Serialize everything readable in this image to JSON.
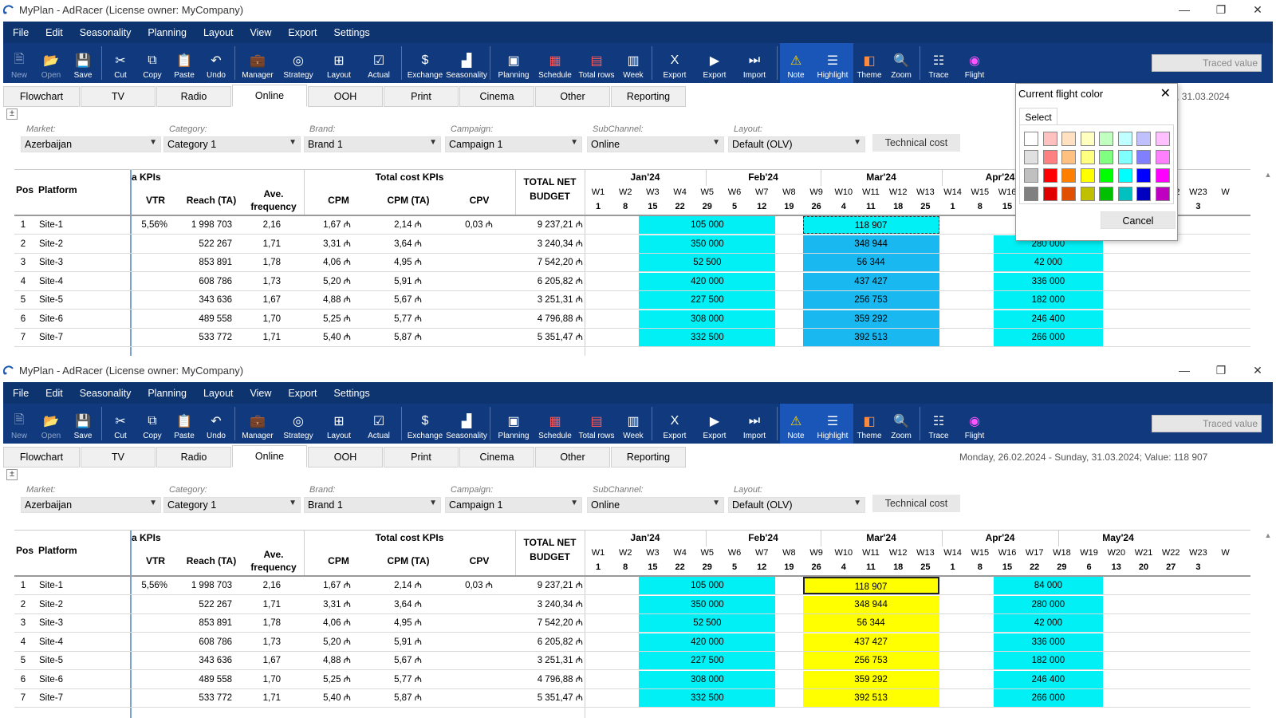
{
  "app": {
    "title": "MyPlan - AdRacer (License owner: MyCompany)",
    "win_min": "—",
    "win_max": "❐",
    "win_close": "✕"
  },
  "menu": [
    "File",
    "Edit",
    "Seasonality",
    "Planning",
    "Layout",
    "View",
    "Export",
    "Settings"
  ],
  "toolbar": [
    {
      "label": "New",
      "icon": "new-icon",
      "disabled": true
    },
    {
      "label": "Open",
      "icon": "open-icon",
      "disabled": true
    },
    {
      "label": "Save",
      "icon": "save-icon"
    },
    {
      "sep": true
    },
    {
      "label": "Cut",
      "icon": "cut-icon"
    },
    {
      "label": "Copy",
      "icon": "copy-icon"
    },
    {
      "label": "Paste",
      "icon": "paste-icon"
    },
    {
      "label": "Undo",
      "icon": "undo-icon"
    },
    {
      "sep": true
    },
    {
      "label": "Manager",
      "icon": "manager-icon"
    },
    {
      "label": "Strategy",
      "icon": "strategy-icon"
    },
    {
      "label": "Layout",
      "icon": "layout-icon"
    },
    {
      "label": "Actual",
      "icon": "actual-icon"
    },
    {
      "sep": true
    },
    {
      "label": "Exchange",
      "icon": "exchange-icon"
    },
    {
      "label": "Seasonality",
      "icon": "seasonality-icon"
    },
    {
      "sep": true
    },
    {
      "label": "Planning",
      "icon": "planning-icon"
    },
    {
      "label": "Schedule",
      "icon": "schedule-icon"
    },
    {
      "label": "Total rows",
      "icon": "total-rows-icon"
    },
    {
      "label": "Week",
      "icon": "week-icon"
    },
    {
      "sep": true
    },
    {
      "label": "Export",
      "icon": "export-excel-icon"
    },
    {
      "label": "Export",
      "icon": "export-icon"
    },
    {
      "label": "Import",
      "icon": "import-icon"
    },
    {
      "sep": true
    },
    {
      "label": "Note",
      "icon": "note-icon",
      "selected": true
    },
    {
      "label": "Highlight",
      "icon": "highlight-icon",
      "selected": true
    },
    {
      "label": "Theme",
      "icon": "theme-icon"
    },
    {
      "label": "Zoom",
      "icon": "zoom-icon"
    },
    {
      "sep": true
    },
    {
      "label": "Trace",
      "icon": "trace-icon"
    },
    {
      "label": "Flight",
      "icon": "flight-icon"
    }
  ],
  "traced_value": "Traced value",
  "tabs": [
    "Flowchart",
    "TV",
    "Radio",
    "Online",
    "OOH",
    "Print",
    "Cinema",
    "Other",
    "Reporting"
  ],
  "active_tab": "Online",
  "status_top": "nday, 31.03.2024",
  "status_bottom": "Monday, 26.02.2024 - Sunday, 31.03.2024;     Value: 118 907",
  "filters": [
    {
      "label": "Market:",
      "value": "Azerbaijan"
    },
    {
      "label": "Category:",
      "value": "Category 1"
    },
    {
      "label": "Brand:",
      "value": "Brand 1"
    },
    {
      "label": "Campaign:",
      "value": "Campaign 1"
    },
    {
      "label": "SubChannel:",
      "value": "Online"
    },
    {
      "label": "Layout:",
      "value": "Default (OLV)"
    }
  ],
  "technical_cost": "Technical cost",
  "table": {
    "pos_header": "Pos",
    "platform_header": "Platform",
    "kpi_group": "a KPIs",
    "cost_group": "Total cost KPIs",
    "budget_header_1": "TOTAL NET",
    "budget_header_2": "BUDGET",
    "cols": [
      "VTR",
      "Reach (TA)",
      "Ave. frequency",
      "CPM",
      "CPM (TA)",
      "CPV"
    ],
    "months": [
      "Jan'24",
      "Feb'24",
      "Mar'24",
      "Apr'24",
      "May'24"
    ],
    "weeks": [
      "W1",
      "W2",
      "W3",
      "W4",
      "W5",
      "W6",
      "W7",
      "W8",
      "W9",
      "W10",
      "W11",
      "W12",
      "W13",
      "W14",
      "W15",
      "W16",
      "W17",
      "W18",
      "W19",
      "W20",
      "W21",
      "W22",
      "W23",
      "W"
    ],
    "days": [
      "1",
      "8",
      "15",
      "22",
      "29",
      "5",
      "12",
      "19",
      "26",
      "4",
      "11",
      "18",
      "25",
      "1",
      "8",
      "15",
      "22",
      "29",
      "6",
      "13",
      "20",
      "27",
      "3",
      ""
    ],
    "rows": [
      {
        "pos": "1",
        "platform": "Site-1",
        "vtr": "5,56%",
        "reach": "1 998 703",
        "freq": "2,16",
        "cpm": "1,67 ₼",
        "cpmta": "2,14 ₼",
        "cpv": "0,03 ₼",
        "budget": "9 237,21 ₼",
        "jan": "105 000",
        "mar": "118 907",
        "apr": "84 000"
      },
      {
        "pos": "2",
        "platform": "Site-2",
        "vtr": "",
        "reach": "522 267",
        "freq": "1,71",
        "cpm": "3,31 ₼",
        "cpmta": "3,64 ₼",
        "cpv": "",
        "budget": "3 240,34 ₼",
        "jan": "350 000",
        "mar": "348 944",
        "apr": "280 000"
      },
      {
        "pos": "3",
        "platform": "Site-3",
        "vtr": "",
        "reach": "853 891",
        "freq": "1,78",
        "cpm": "4,06 ₼",
        "cpmta": "4,95 ₼",
        "cpv": "",
        "budget": "7 542,20 ₼",
        "jan": "52 500",
        "mar": "56 344",
        "apr": "42 000"
      },
      {
        "pos": "4",
        "platform": "Site-4",
        "vtr": "",
        "reach": "608 786",
        "freq": "1,73",
        "cpm": "5,20 ₼",
        "cpmta": "5,91 ₼",
        "cpv": "",
        "budget": "6 205,82 ₼",
        "jan": "420 000",
        "mar": "437 427",
        "apr": "336 000"
      },
      {
        "pos": "5",
        "platform": "Site-5",
        "vtr": "",
        "reach": "343 636",
        "freq": "1,67",
        "cpm": "4,88 ₼",
        "cpmta": "5,67 ₼",
        "cpv": "",
        "budget": "3 251,31 ₼",
        "jan": "227 500",
        "mar": "256 753",
        "apr": "182 000"
      },
      {
        "pos": "6",
        "platform": "Site-6",
        "vtr": "",
        "reach": "489 558",
        "freq": "1,70",
        "cpm": "5,25 ₼",
        "cpmta": "5,77 ₼",
        "cpv": "",
        "budget": "4 796,88 ₼",
        "jan": "308 000",
        "mar": "359 292",
        "apr": "246 400"
      },
      {
        "pos": "7",
        "platform": "Site-7",
        "vtr": "",
        "reach": "533 772",
        "freq": "1,71",
        "cpm": "5,40 ₼",
        "cpmta": "5,87 ₼",
        "cpv": "",
        "budget": "5 351,47 ₼",
        "jan": "332 500",
        "mar": "392 513",
        "apr": "266 000"
      }
    ]
  },
  "colors": {
    "flight_cyan": "#00f0f5",
    "flight_blue": "#1ab8f0",
    "flight_yellow": "#ffff00",
    "menubar": "#0e3470",
    "toolbar": "#103a7d"
  },
  "popup": {
    "title": "Current flight color",
    "close": "✕",
    "tab": "Select",
    "cancel": "Cancel",
    "swatches": [
      [
        "#ffffff",
        "#ffc0c0",
        "#ffe0c0",
        "#ffffc0",
        "#c0ffc0",
        "#c0ffff",
        "#c0c0ff",
        "#ffc0ff"
      ],
      [
        "#e0e0e0",
        "#ff8080",
        "#ffc080",
        "#ffff80",
        "#80ff80",
        "#80ffff",
        "#8080ff",
        "#ff80ff"
      ],
      [
        "#c0c0c0",
        "#ff0000",
        "#ff8000",
        "#ffff00",
        "#00ff00",
        "#00ffff",
        "#0000ff",
        "#ff00ff"
      ],
      [
        "#808080",
        "#e00000",
        "#e05000",
        "#c0c000",
        "#00c000",
        "#00c0c0",
        "#0000c0",
        "#c000c0"
      ]
    ]
  }
}
